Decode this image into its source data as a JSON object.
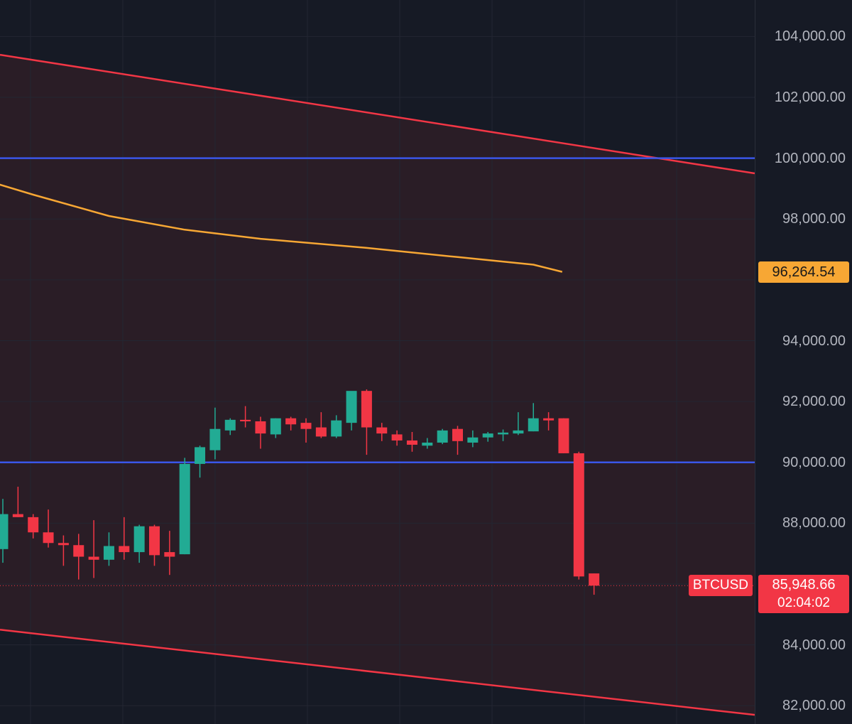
{
  "chart_data": {
    "type": "candlestick",
    "symbol": "BTCUSD",
    "ylim": [
      81400,
      105200
    ],
    "y_ticks": [
      "104,000.00",
      "102,000.00",
      "100,000.00",
      "98,000.00",
      "94,000.00",
      "92,000.00",
      "90,000.00",
      "88,000.00",
      "84,000.00",
      "82,000.00"
    ],
    "y_tick_values": [
      104000,
      102000,
      100000,
      98000,
      94000,
      92000,
      90000,
      88000,
      84000,
      82000
    ],
    "grid": true,
    "last_price": "85,948.66",
    "countdown": "02:04:02",
    "sma_value": "96,264.54",
    "candles": [
      {
        "o": 87150,
        "h": 88800,
        "l": 86700,
        "c": 88300
      },
      {
        "o": 88300,
        "h": 89200,
        "l": 88200,
        "c": 88200
      },
      {
        "o": 88200,
        "h": 88300,
        "l": 87500,
        "c": 87700
      },
      {
        "o": 87700,
        "h": 88450,
        "l": 87200,
        "c": 87350
      },
      {
        "o": 87350,
        "h": 87600,
        "l": 86600,
        "c": 87280
      },
      {
        "o": 87280,
        "h": 87650,
        "l": 86150,
        "c": 86900
      },
      {
        "o": 86900,
        "h": 88100,
        "l": 86200,
        "c": 86800
      },
      {
        "o": 86800,
        "h": 87700,
        "l": 86600,
        "c": 87250
      },
      {
        "o": 87250,
        "h": 88200,
        "l": 86800,
        "c": 87050
      },
      {
        "o": 87050,
        "h": 87950,
        "l": 86700,
        "c": 87900
      },
      {
        "o": 87900,
        "h": 87950,
        "l": 86600,
        "c": 86950
      },
      {
        "o": 87050,
        "h": 87750,
        "l": 86300,
        "c": 86900
      },
      {
        "o": 86980,
        "h": 90150,
        "l": 86980,
        "c": 89950
      },
      {
        "o": 89950,
        "h": 90550,
        "l": 89500,
        "c": 90500
      },
      {
        "o": 90400,
        "h": 91800,
        "l": 90100,
        "c": 91100
      },
      {
        "o": 91050,
        "h": 91450,
        "l": 90900,
        "c": 91400
      },
      {
        "o": 91400,
        "h": 91850,
        "l": 91150,
        "c": 91350
      },
      {
        "o": 91350,
        "h": 91500,
        "l": 90450,
        "c": 90950
      },
      {
        "o": 90920,
        "h": 91450,
        "l": 90800,
        "c": 91450
      },
      {
        "o": 91450,
        "h": 91500,
        "l": 91050,
        "c": 91250
      },
      {
        "o": 91300,
        "h": 91450,
        "l": 90650,
        "c": 91100
      },
      {
        "o": 91150,
        "h": 91650,
        "l": 90800,
        "c": 90850
      },
      {
        "o": 90850,
        "h": 91550,
        "l": 90800,
        "c": 91380
      },
      {
        "o": 91300,
        "h": 92300,
        "l": 91050,
        "c": 92350
      },
      {
        "o": 92350,
        "h": 92400,
        "l": 90250,
        "c": 91150
      },
      {
        "o": 91150,
        "h": 91300,
        "l": 90700,
        "c": 90950
      },
      {
        "o": 90920,
        "h": 91050,
        "l": 90550,
        "c": 90720
      },
      {
        "o": 90720,
        "h": 91000,
        "l": 90350,
        "c": 90580
      },
      {
        "o": 90550,
        "h": 90800,
        "l": 90450,
        "c": 90650
      },
      {
        "o": 90650,
        "h": 91100,
        "l": 90600,
        "c": 91050
      },
      {
        "o": 91100,
        "h": 91200,
        "l": 90250,
        "c": 90700
      },
      {
        "o": 90650,
        "h": 91050,
        "l": 90500,
        "c": 90820
      },
      {
        "o": 90820,
        "h": 91000,
        "l": 90680,
        "c": 90950
      },
      {
        "o": 90920,
        "h": 91080,
        "l": 90700,
        "c": 90980
      },
      {
        "o": 90950,
        "h": 91650,
        "l": 90900,
        "c": 91050
      },
      {
        "o": 91020,
        "h": 91950,
        "l": 91020,
        "c": 91450
      },
      {
        "o": 91450,
        "h": 91650,
        "l": 91050,
        "c": 91380
      },
      {
        "o": 91450,
        "h": 91450,
        "l": 90300,
        "c": 90300
      },
      {
        "o": 90300,
        "h": 90350,
        "l": 86150,
        "c": 86250
      },
      {
        "o": 86350,
        "h": 86350,
        "l": 85650,
        "c": 85948.66
      }
    ],
    "sma": {
      "name": "SMA",
      "x_index": [
        -2,
        2,
        7,
        12,
        17,
        24,
        30,
        35,
        36.9
      ],
      "values": [
        99400,
        98800,
        98100,
        97650,
        97350,
        97050,
        96750,
        96500,
        96264.54
      ]
    },
    "horizontal_levels": [
      100000,
      90000
    ],
    "channel": {
      "upper": {
        "start": 103400,
        "end": 99500
      },
      "lower": {
        "start": 84500,
        "end": 81700
      }
    },
    "colors": {
      "up": "#22ab94",
      "down": "#f23645",
      "sma": "#f7a734",
      "level": "#3a56e8",
      "channel": "#f23645",
      "channel_fill": "#2a1d26",
      "background": "#161a25",
      "grid": "#232632"
    }
  }
}
